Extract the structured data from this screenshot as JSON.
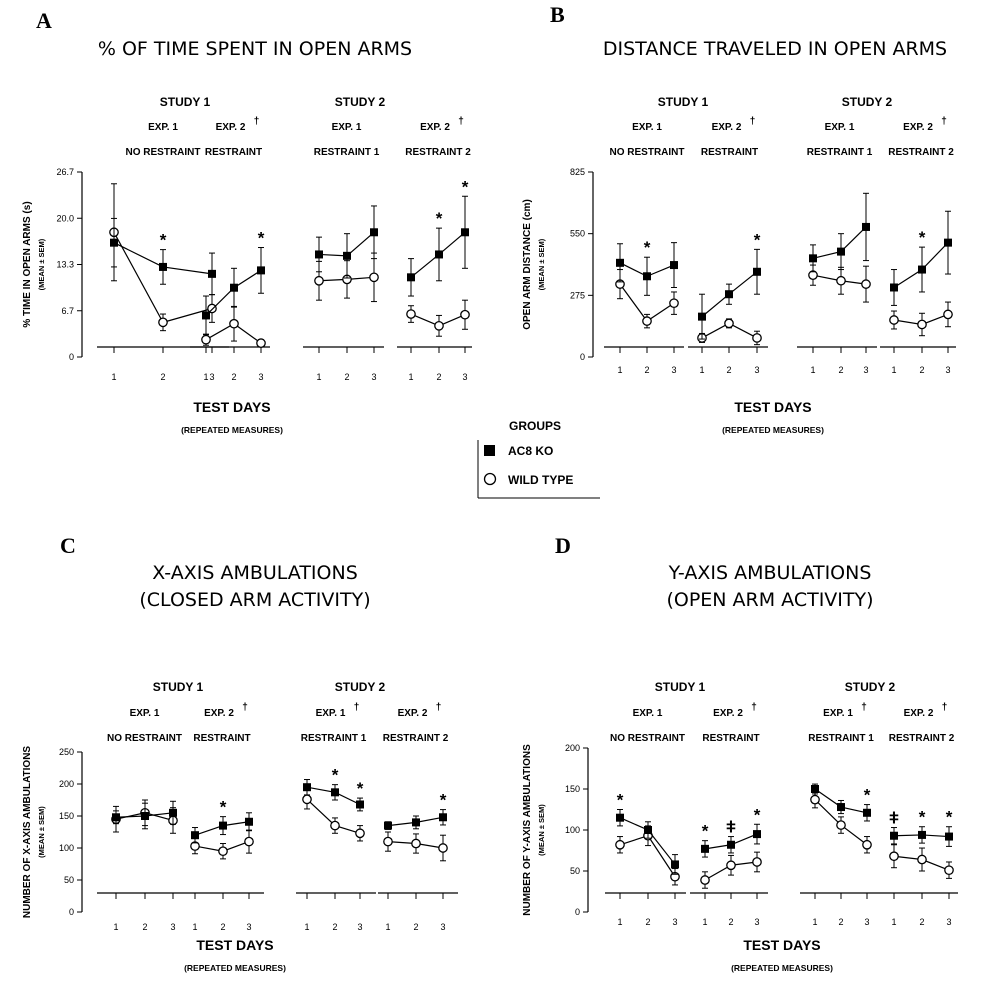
{
  "legend": {
    "title": "GROUPS",
    "items": [
      "AC8 KO",
      "WILD TYPE"
    ]
  },
  "chart_data": [
    {
      "panel": "A",
      "title": "% OF TIME SPENT IN OPEN ARMS",
      "type": "line",
      "ylabel": "% TIME IN OPEN ARMS (s)",
      "ylabel_sub": "(MEAN ± SEM)",
      "xlabel": "TEST DAYS",
      "xlabel_sub": "(REPEATED MEASURES)",
      "yticks": [
        "26.7",
        "20.0",
        "13.3",
        "6.7",
        "0"
      ],
      "ylim": [
        0,
        26.7
      ],
      "studies": [
        "STUDY 1",
        "STUDY 2"
      ],
      "segments": [
        {
          "exp": "EXP. 1",
          "sub": "NO RESTRAINT",
          "dagger": false,
          "days": [
            "1",
            "2",
            "3"
          ],
          "ko": [
            16.5,
            13,
            12
          ],
          "ko_err": [
            3.5,
            2.5,
            3
          ],
          "wt": [
            18,
            5,
            7
          ],
          "wt_err": [
            7,
            1.2,
            2
          ],
          "stars": [
            "",
            "*",
            ""
          ]
        },
        {
          "exp": "EXP. 2",
          "sub": "RESTRAINT",
          "dagger": true,
          "days": [
            "1",
            "2",
            "3"
          ],
          "ko": [
            6,
            10,
            12.5
          ],
          "ko_err": [
            2.8,
            2.8,
            3.3
          ],
          "wt": [
            2.5,
            4.8,
            2
          ],
          "wt_err": [
            0.8,
            2.5,
            0.5
          ],
          "stars": [
            "",
            "",
            "*"
          ]
        },
        {
          "exp": "EXP. 1",
          "sub": "RESTRAINT 1",
          "dagger": false,
          "days": [
            "1",
            "2",
            "3"
          ],
          "ko": [
            14.8,
            14.6,
            18
          ],
          "ko_err": [
            2.5,
            3.2,
            3.8
          ],
          "wt": [
            11,
            11.2,
            11.5
          ],
          "wt_err": [
            2.8,
            2.7,
            3.5
          ],
          "stars": [
            "",
            "",
            ""
          ]
        },
        {
          "exp": "EXP. 2",
          "sub": "RESTRAINT 2",
          "dagger": true,
          "days": [
            "1",
            "2",
            "3"
          ],
          "ko": [
            11.5,
            14.8,
            18
          ],
          "ko_err": [
            2.7,
            3.8,
            5.2
          ],
          "wt": [
            6.2,
            4.5,
            6.1
          ],
          "wt_err": [
            1.2,
            1.5,
            2.1
          ],
          "stars": [
            "",
            "*",
            "*"
          ]
        }
      ]
    },
    {
      "panel": "B",
      "title": "DISTANCE TRAVELED IN OPEN ARMS",
      "type": "line",
      "ylabel": "OPEN ARM DISTANCE (cm)",
      "ylabel_sub": "(MEAN ± SEM)",
      "xlabel": "TEST DAYS",
      "xlabel_sub": "(REPEATED MEASURES)",
      "yticks": [
        "825",
        "550",
        "275",
        "0"
      ],
      "ylim": [
        0,
        825
      ],
      "studies": [
        "STUDY 1",
        "STUDY 2"
      ],
      "segments": [
        {
          "exp": "EXP. 1",
          "sub": "NO RESTRAINT",
          "dagger": false,
          "days": [
            "1",
            "2",
            "3"
          ],
          "ko": [
            420,
            360,
            410
          ],
          "ko_err": [
            85,
            85,
            100
          ],
          "wt": [
            325,
            160,
            240
          ],
          "wt_err": [
            65,
            30,
            50
          ],
          "stars": [
            "",
            "*",
            ""
          ]
        },
        {
          "exp": "EXP. 2",
          "sub": "RESTRAINT",
          "dagger": true,
          "days": [
            "1",
            "2",
            "3"
          ],
          "ko": [
            180,
            280,
            380
          ],
          "ko_err": [
            100,
            45,
            100
          ],
          "wt": [
            85,
            150,
            85
          ],
          "wt_err": [
            20,
            20,
            30
          ],
          "stars": [
            "",
            "",
            "*"
          ]
        },
        {
          "exp": "EXP. 1",
          "sub": "RESTRAINT 1",
          "dagger": false,
          "days": [
            "1",
            "2",
            "3"
          ],
          "ko": [
            440,
            470,
            580
          ],
          "ko_err": [
            60,
            80,
            150
          ],
          "wt": [
            365,
            340,
            325
          ],
          "wt_err": [
            45,
            60,
            80
          ],
          "stars": [
            "",
            "",
            ""
          ]
        },
        {
          "exp": "EXP. 2",
          "sub": "RESTRAINT 2",
          "dagger": true,
          "days": [
            "1",
            "2",
            "3"
          ],
          "ko": [
            310,
            390,
            510
          ],
          "ko_err": [
            80,
            100,
            140
          ],
          "wt": [
            165,
            145,
            190
          ],
          "wt_err": [
            40,
            50,
            55
          ],
          "stars": [
            "",
            "*",
            ""
          ]
        }
      ]
    },
    {
      "panel": "C",
      "title": "X-AXIS AMBULATIONS",
      "subtitle": "(CLOSED ARM ACTIVITY)",
      "type": "line",
      "ylabel": "NUMBER OF X-AXIS AMBULATIONS",
      "ylabel_sub": "(MEAN ± SEM)",
      "xlabel": "TEST DAYS",
      "xlabel_sub": "(REPEATED MEASURES)",
      "yticks": [
        "250",
        "200",
        "150",
        "100",
        "50",
        "0"
      ],
      "ylim": [
        0,
        250
      ],
      "studies": [
        "STUDY 1",
        "STUDY 2"
      ],
      "segments": [
        {
          "exp": "EXP. 1",
          "sub": "NO RESTRAINT",
          "dagger": false,
          "days": [
            "1",
            "2",
            "3"
          ],
          "ko": [
            148,
            150,
            155
          ],
          "ko_err": [
            10,
            20,
            18
          ],
          "wt": [
            145,
            155,
            143
          ],
          "wt_err": [
            20,
            20,
            20
          ],
          "stars": [
            "",
            "",
            ""
          ]
        },
        {
          "exp": "EXP. 2",
          "sub": "RESTRAINT",
          "dagger": true,
          "days": [
            "1",
            "2",
            "3"
          ],
          "ko": [
            120,
            135,
            141
          ],
          "ko_err": [
            12,
            14,
            14
          ],
          "wt": [
            103,
            95,
            110
          ],
          "wt_err": [
            12,
            12,
            18
          ],
          "stars": [
            "",
            "*",
            ""
          ]
        },
        {
          "exp": "EXP. 1",
          "sub": "RESTRAINT 1",
          "dagger": true,
          "days": [
            "1",
            "2",
            "3"
          ],
          "ko": [
            195,
            187,
            168
          ],
          "ko_err": [
            12,
            12,
            10
          ],
          "wt": [
            176,
            135,
            123
          ],
          "wt_err": [
            15,
            12,
            12
          ],
          "stars": [
            "",
            "*",
            "*"
          ]
        },
        {
          "exp": "EXP. 2",
          "sub": "RESTRAINT 2",
          "dagger": true,
          "days": [
            "1",
            "2",
            "3"
          ],
          "ko": [
            135,
            140,
            148
          ],
          "ko_err": [
            6,
            10,
            12
          ],
          "wt": [
            110,
            107,
            100
          ],
          "wt_err": [
            15,
            15,
            20
          ],
          "stars": [
            "",
            "",
            "*"
          ]
        }
      ]
    },
    {
      "panel": "D",
      "title": "Y-AXIS AMBULATIONS",
      "subtitle": "(OPEN ARM ACTIVITY)",
      "type": "line",
      "ylabel": "NUMBER OF Y-AXIS AMBULATIONS",
      "ylabel_sub": "(MEAN ± SEM)",
      "xlabel": "TEST DAYS",
      "xlabel_sub": "(REPEATED MEASURES)",
      "yticks": [
        "200",
        "150",
        "100",
        "50",
        "0"
      ],
      "ylim": [
        0,
        200
      ],
      "studies": [
        "STUDY 1",
        "STUDY 2"
      ],
      "segments": [
        {
          "exp": "EXP. 1",
          "sub": "NO RESTRAINT",
          "dagger": false,
          "days": [
            "1",
            "2",
            "3"
          ],
          "ko": [
            115,
            100,
            58
          ],
          "ko_err": [
            10,
            10,
            12
          ],
          "wt": [
            82,
            93,
            43
          ],
          "wt_err": [
            10,
            12,
            10
          ],
          "stars": [
            "*",
            "",
            ""
          ]
        },
        {
          "exp": "EXP. 2",
          "sub": "RESTRAINT",
          "dagger": true,
          "days": [
            "1",
            "2",
            "3"
          ],
          "ko": [
            77,
            82,
            95
          ],
          "ko_err": [
            10,
            10,
            12
          ],
          "wt": [
            39,
            57,
            61
          ],
          "wt_err": [
            10,
            12,
            12
          ],
          "stars": [
            "*",
            "ǂ",
            "*"
          ]
        },
        {
          "exp": "EXP. 1",
          "sub": "RESTRAINT 1",
          "dagger": true,
          "days": [
            "1",
            "2",
            "3"
          ],
          "ko": [
            150,
            128,
            121
          ],
          "ko_err": [
            6,
            8,
            10
          ],
          "wt": [
            137,
            106,
            82
          ],
          "wt_err": [
            10,
            10,
            10
          ],
          "stars": [
            "",
            "",
            "*"
          ]
        },
        {
          "exp": "EXP. 2",
          "sub": "RESTRAINT 2",
          "dagger": true,
          "days": [
            "1",
            "2",
            "3"
          ],
          "ko": [
            93,
            94,
            92
          ],
          "ko_err": [
            10,
            10,
            12
          ],
          "wt": [
            68,
            64,
            51
          ],
          "wt_err": [
            14,
            14,
            10
          ],
          "stars": [
            "ǂ",
            "*",
            "*"
          ]
        }
      ]
    }
  ]
}
